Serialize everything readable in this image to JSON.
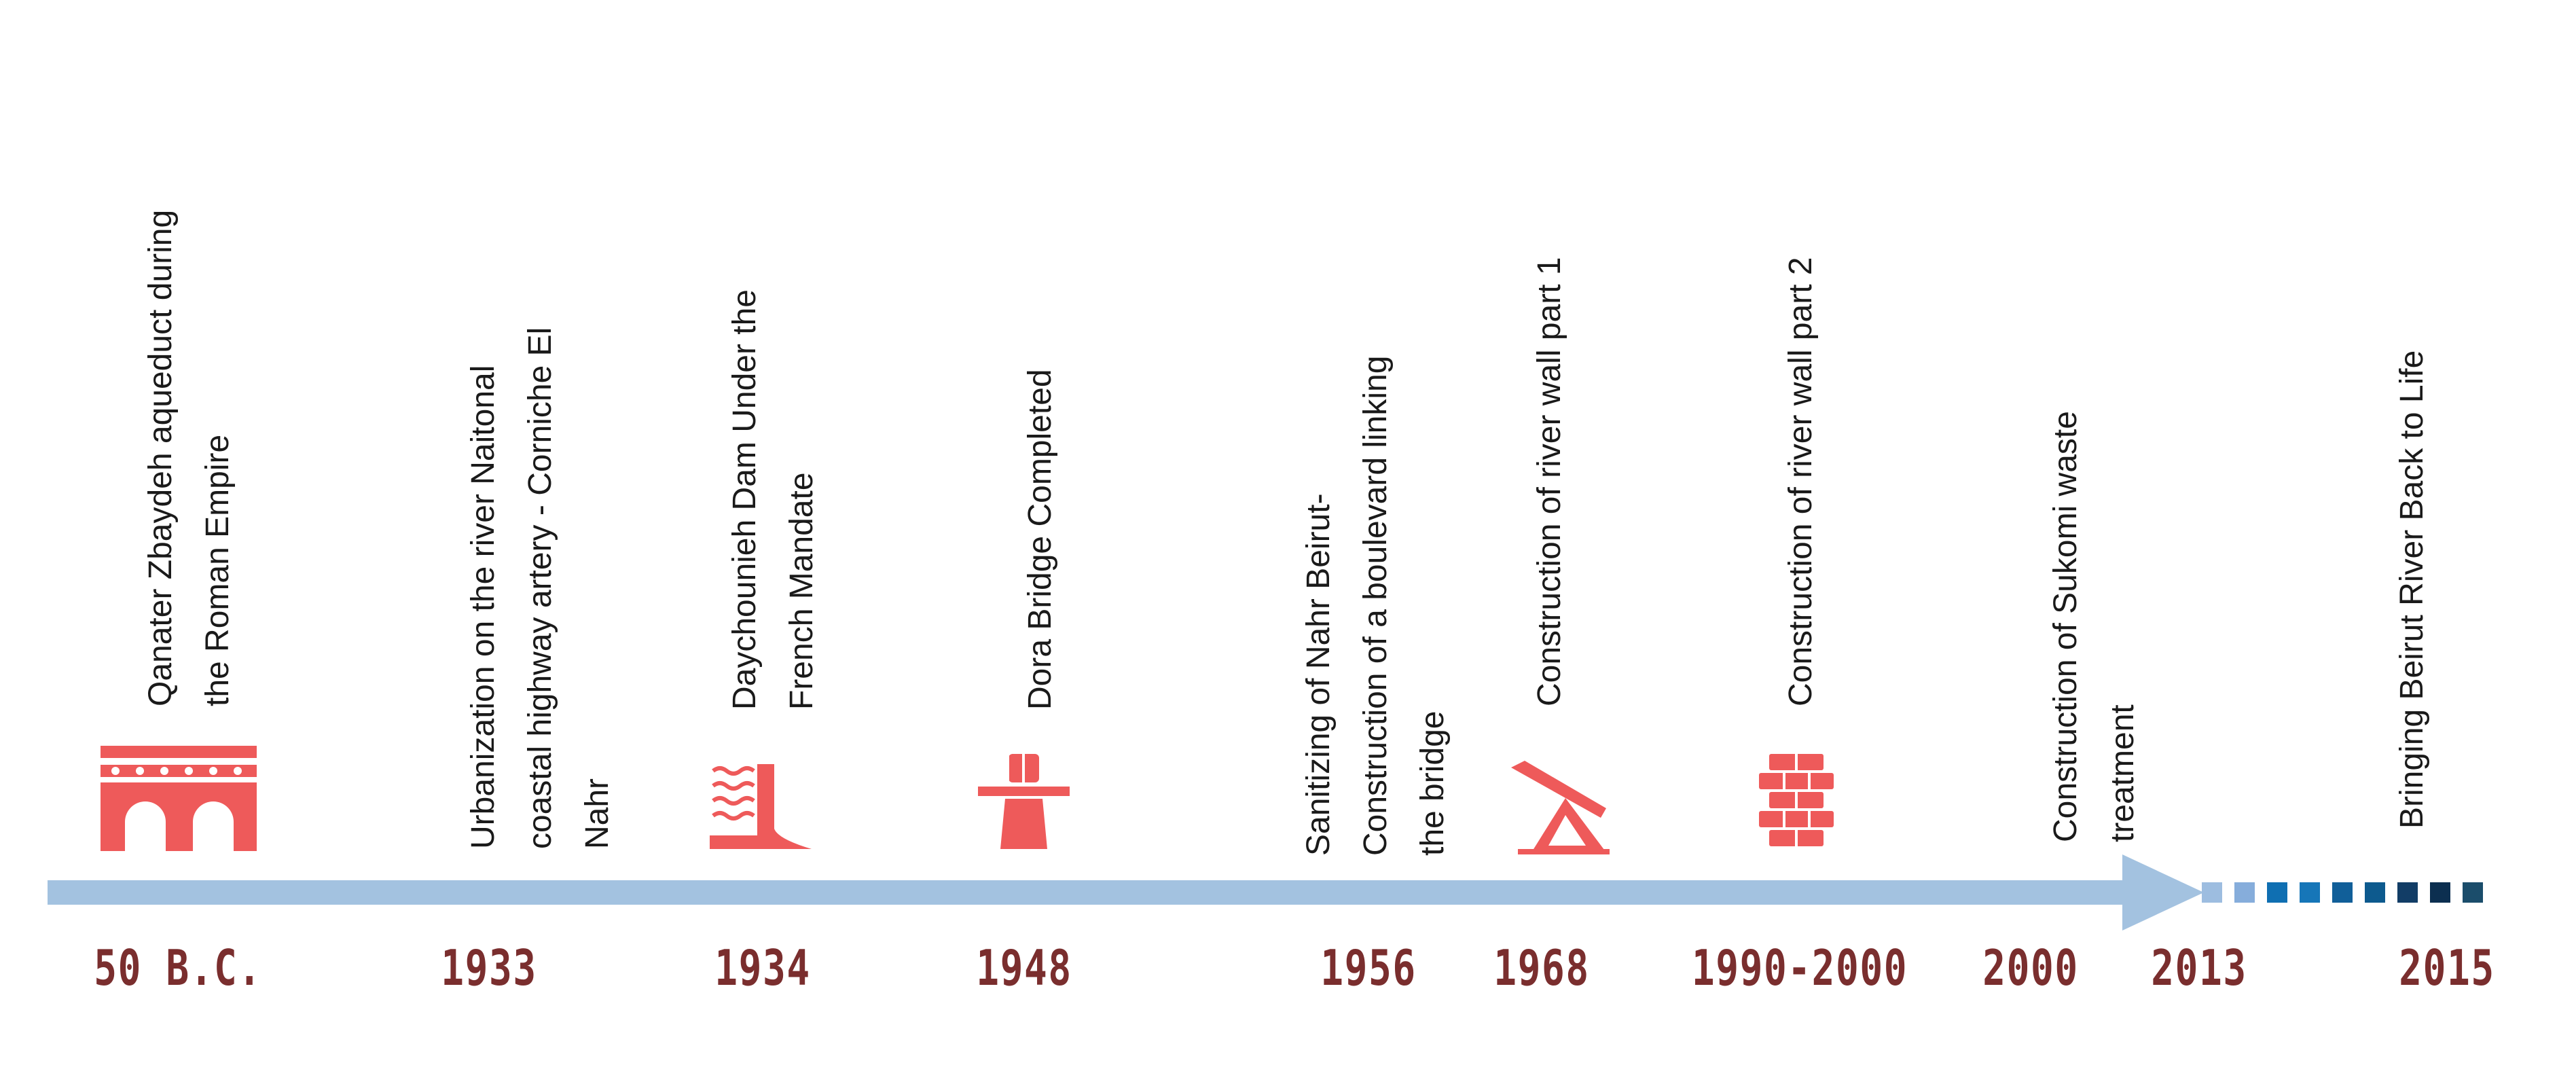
{
  "colors": {
    "arrow": "#a3c2e0",
    "icon": "#ee5a5a",
    "year_text": "#7a2e2e",
    "label_text": "#1a1a1a",
    "dots": [
      "#9dbde0",
      "#86addb",
      "#0f6fb2",
      "#1676b8",
      "#115f99",
      "#0d5a8e",
      "#123d66",
      "#0c2f50",
      "#1b4d6b"
    ]
  },
  "events": [
    {
      "year": "50 B.C.",
      "lines": [
        "Qanater Zbaydeh aqueduct during",
        "the Roman Empire"
      ],
      "icon": "aqueduct-icon"
    },
    {
      "year": "1933",
      "lines": [
        "Urbanization on the river Naitonal",
        "coastal highway artery - Corniche El",
        "Nahr"
      ],
      "icon": ""
    },
    {
      "year": "1934",
      "lines": [
        "Daychounieh Dam Under the",
        "French Mandate"
      ],
      "icon": "dam-icon"
    },
    {
      "year": "1948",
      "lines": [
        "Dora Bridge Completed"
      ],
      "icon": "bridge-icon"
    },
    {
      "year": "1956",
      "lines": [
        "Sanitizing of Nahr Beirut-",
        "Construction of a boulevard linking",
        "the bridge"
      ],
      "icon": ""
    },
    {
      "year": "1968",
      "lines": [
        "Construction of river wall part 1"
      ],
      "icon": "crane-icon"
    },
    {
      "year": "1990-2000",
      "lines": [
        "Construction of river wall part 2"
      ],
      "icon": "brick-wall-icon"
    },
    {
      "year": "2000",
      "lines": [
        "Construction of Sukomi waste",
        "treatment"
      ],
      "icon": ""
    },
    {
      "year": "2013",
      "lines": [],
      "icon": ""
    },
    {
      "year": "2015",
      "lines": [
        "Bringing Beirut River Back to Life"
      ],
      "icon": ""
    }
  ]
}
